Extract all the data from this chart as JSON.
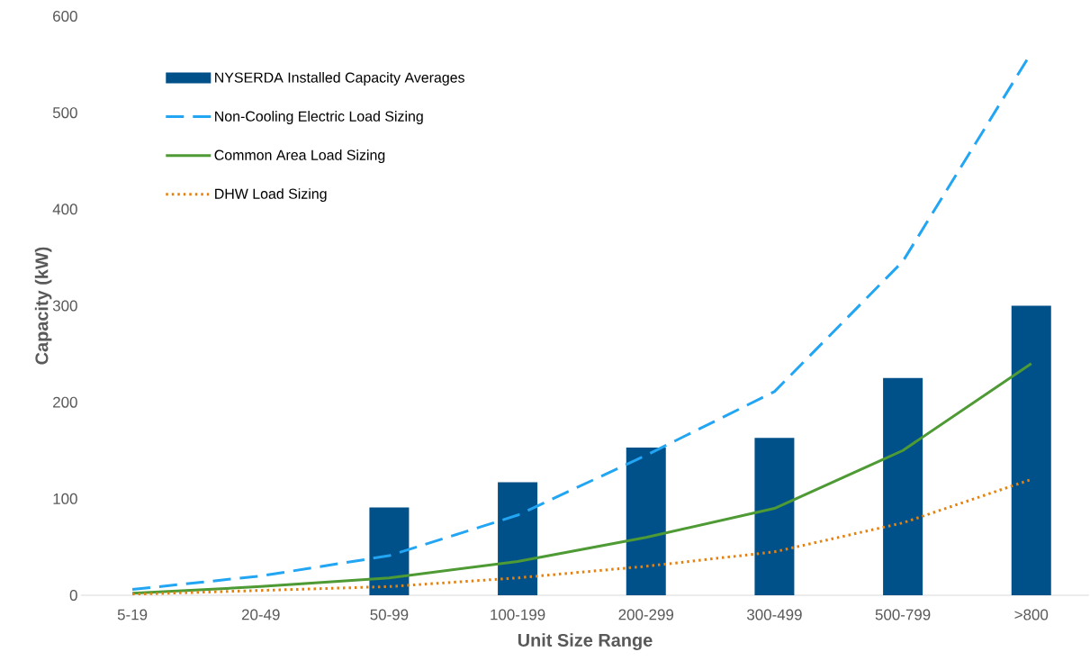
{
  "chart_data": {
    "type": "bar",
    "xlabel": "Unit Size Range",
    "ylabel": "Capacity (kW)",
    "categories": [
      "5-19",
      "20-49",
      "50-99",
      "100-199",
      "200-299",
      "300-499",
      "500-799",
      ">800"
    ],
    "series": [
      {
        "name": "NYSERDA Installed Capacity Averages",
        "color": "#00518a",
        "values": [
          null,
          null,
          91,
          117,
          153,
          163,
          225,
          300
        ]
      },
      {
        "name": "Non-Cooling Electric Load Sizing",
        "type": "line",
        "line_style": "dashed",
        "color": "#22a5f2",
        "values": [
          6,
          20,
          41,
          83,
          145,
          211,
          346,
          562
        ]
      },
      {
        "name": "Common Area Load Sizing",
        "type": "line",
        "line_style": "solid",
        "color": "#4e9a34",
        "values": [
          2,
          9,
          18,
          35,
          60,
          90,
          150,
          240
        ]
      },
      {
        "name": "DHW Load Sizing",
        "type": "line",
        "line_style": "dotted",
        "color": "#e5820f",
        "values": [
          1,
          5,
          9,
          18,
          30,
          45,
          75,
          120
        ]
      }
    ],
    "ylim": [
      0,
      600
    ],
    "yticks": [
      0,
      100,
      200,
      300,
      400,
      500,
      600
    ],
    "marker": "none",
    "legend": "top left"
  }
}
